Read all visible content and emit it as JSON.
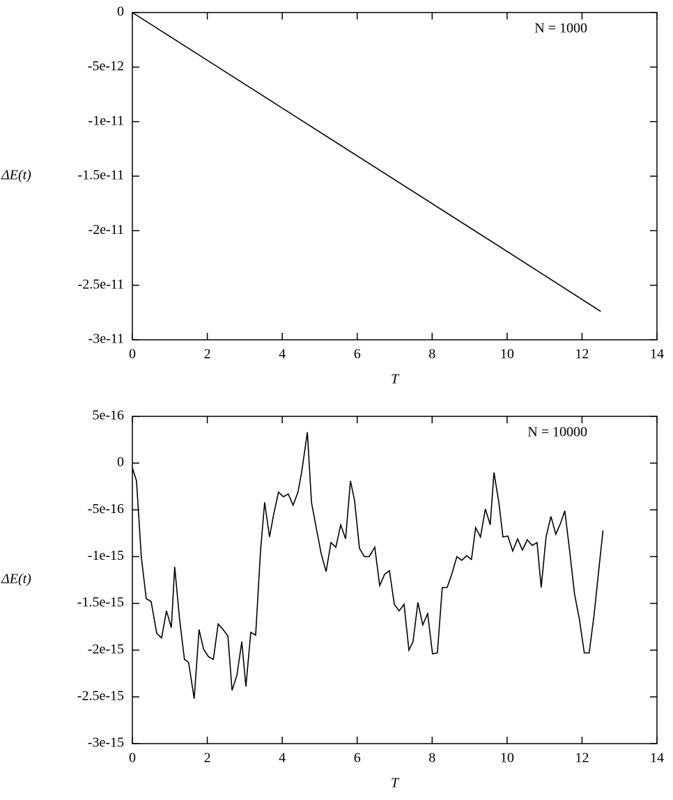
{
  "chart_data": [
    {
      "type": "line",
      "annotation": "N = 1000",
      "x_label": "T",
      "y_label": "ΔE(t)",
      "x": [
        0,
        2,
        4,
        6,
        8,
        10,
        12.5
      ],
      "values": [
        0,
        -4.38e-12,
        -8.76e-12,
        -1.314e-11,
        -1.752e-11,
        -2.19e-11,
        -2.74e-11
      ],
      "color": "#000000",
      "xlim": [
        0,
        14
      ],
      "xticks": [
        0,
        2,
        4,
        6,
        8,
        10,
        12,
        14
      ],
      "ylim": [
        -3e-11,
        0
      ],
      "yticks": [
        0,
        -5e-12,
        -1e-11,
        -1.5e-11,
        -2e-11,
        -2.5e-11,
        -3e-11
      ]
    },
    {
      "type": "line",
      "annotation": "N = 10000",
      "x_label": "T",
      "y_label": "ΔE(t)",
      "x": [
        0,
        0.11,
        0.24,
        0.37,
        0.5,
        0.65,
        0.78,
        0.91,
        1.04,
        1.13,
        1.26,
        1.39,
        1.5,
        1.65,
        1.78,
        1.9,
        2.03,
        2.16,
        2.29,
        2.42,
        2.55,
        2.66,
        2.79,
        2.92,
        3.03,
        3.16,
        3.29,
        3.42,
        3.53,
        3.66,
        3.77,
        3.9,
        4.03,
        4.16,
        4.29,
        4.42,
        4.52,
        4.67,
        4.78,
        4.91,
        5.04,
        5.17,
        5.3,
        5.43,
        5.56,
        5.69,
        5.82,
        5.93,
        6.06,
        6.19,
        6.32,
        6.47,
        6.6,
        6.73,
        6.86,
        6.99,
        7.12,
        7.25,
        7.38,
        7.49,
        7.62,
        7.75,
        7.88,
        8.01,
        8.14,
        8.27,
        8.4,
        8.53,
        8.66,
        8.79,
        8.92,
        9.05,
        9.16,
        9.29,
        9.42,
        9.55,
        9.65,
        9.78,
        9.89,
        10.02,
        10.15,
        10.28,
        10.41,
        10.54,
        10.67,
        10.8,
        10.91,
        11.04,
        11.17,
        11.3,
        11.43,
        11.54,
        11.67,
        11.8,
        11.93,
        12.06,
        12.19,
        12.32,
        12.45,
        12.56
      ],
      "values": [
        -5e-17,
        -1.9e-16,
        -1.01e-15,
        -1.45e-15,
        -1.48e-15,
        -1.82e-15,
        -1.87e-15,
        -1.58e-15,
        -1.76e-15,
        -1.11e-15,
        -1.67e-15,
        -2.1e-15,
        -2.13e-15,
        -2.52e-15,
        -1.78e-15,
        -1.99e-15,
        -2.07e-15,
        -2.1e-15,
        -1.72e-15,
        -1.78e-15,
        -1.85e-15,
        -2.43e-15,
        -2.27e-15,
        -1.91e-15,
        -2.39e-15,
        -1.81e-15,
        -1.84e-15,
        -9.4e-16,
        -4.2e-16,
        -7.9e-16,
        -5.5e-16,
        -3.1e-16,
        -3.6e-16,
        -3.3e-16,
        -4.5e-16,
        -3.1e-16,
        -9e-17,
        3.3e-16,
        -4.2e-16,
        -7e-16,
        -9.7e-16,
        -1.16e-15,
        -8.5e-16,
        -9e-16,
        -6.6e-16,
        -8.1e-16,
        -1.9e-16,
        -4e-16,
        -9.1e-16,
        -1e-15,
        -1e-15,
        -9e-16,
        -1.31e-15,
        -1.19e-15,
        -1.15e-15,
        -1.51e-15,
        -1.58e-15,
        -1.51e-15,
        -2e-15,
        -1.91e-15,
        -1.49e-15,
        -1.73e-15,
        -1.61e-15,
        -2.04e-15,
        -2.03e-15,
        -1.33e-15,
        -1.33e-15,
        -1.18e-15,
        -1e-15,
        -1.04e-15,
        -9.9e-16,
        -1.03e-15,
        -6.9e-16,
        -7.9e-16,
        -4.9e-16,
        -6.6e-16,
        -1e-16,
        -4.2e-16,
        -7.9e-16,
        -7.8e-16,
        -9.4e-16,
        -8.1e-16,
        -9.3e-16,
        -8.2e-16,
        -8.8e-16,
        -8.5e-16,
        -1.33e-15,
        -7.9e-16,
        -5.7e-16,
        -7.6e-16,
        -6.4e-16,
        -5.1e-16,
        -9.4e-16,
        -1.4e-15,
        -1.67e-15,
        -2.03e-15,
        -2.03e-15,
        -1.63e-15,
        -1.13e-15,
        -7.2e-16
      ],
      "color": "#000000",
      "xlim": [
        0,
        14
      ],
      "xticks": [
        0,
        2,
        4,
        6,
        8,
        10,
        12,
        14
      ],
      "ylim": [
        -3e-15,
        5e-16
      ],
      "yticks": [
        5e-16,
        0,
        -5e-16,
        -1e-15,
        -1.5e-15,
        -2e-15,
        -2.5e-15,
        -3e-15
      ]
    }
  ]
}
